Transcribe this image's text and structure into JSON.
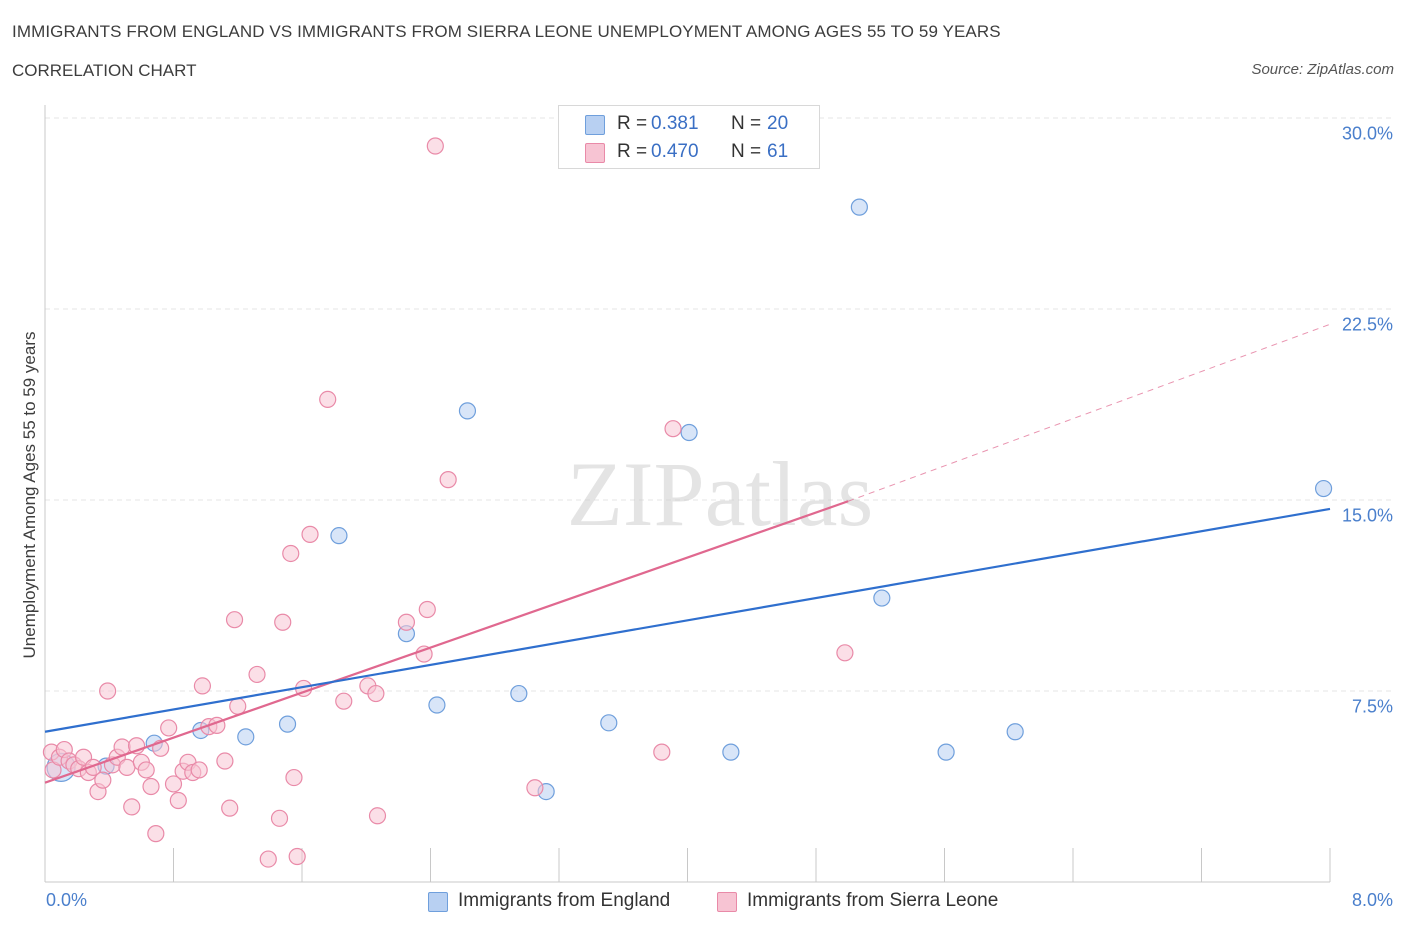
{
  "header": {
    "title": "IMMIGRANTS FROM ENGLAND VS IMMIGRANTS FROM SIERRA LEONE UNEMPLOYMENT AMONG AGES 55 TO 59 YEARS",
    "subtitle": "CORRELATION CHART",
    "source": "Source: ZipAtlas.com"
  },
  "watermark": "ZIPatlas",
  "colors": {
    "england_fill": "#b8d0f2",
    "england_stroke": "#6f9fdc",
    "england_line": "#2f6fce",
    "sierra_fill": "#f7c4d3",
    "sierra_stroke": "#e98aa8",
    "sierra_line": "#e0688f",
    "grid": "#e4e4e4",
    "axis_text": "#4a7fcc"
  },
  "legend": {
    "england": {
      "r_label": "R =",
      "r_value": "0.381",
      "n_label": "N =",
      "n_value": "20"
    },
    "sierra": {
      "r_label": "R =",
      "r_value": "0.470",
      "n_label": "N =",
      "n_value": "61"
    }
  },
  "chart_data": {
    "type": "scatter",
    "title": "IMMIGRANTS FROM ENGLAND VS IMMIGRANTS FROM SIERRA LEONE UNEMPLOYMENT AMONG AGES 55 TO 59 YEARS",
    "xlabel": "",
    "ylabel": "Unemployment Among Ages 55 to 59 years",
    "xlim": [
      0,
      8
    ],
    "ylim": [
      0,
      30
    ],
    "x_tick_labels": [
      "0.0%",
      "8.0%"
    ],
    "y_ticks": [
      7.5,
      15,
      22.5,
      30
    ],
    "y_tick_labels": [
      "7.5%",
      "15.0%",
      "22.5%",
      "30.0%"
    ],
    "grid": true,
    "series": [
      {
        "name": "Immigrants from England",
        "r": 0.381,
        "n": 20,
        "trend": {
          "x0": 0.0,
          "y0": 5.9,
          "x1": 8.0,
          "y1": 14.65
        },
        "points": [
          {
            "x": 0.1,
            "y": 4.5,
            "big": true
          },
          {
            "x": 0.38,
            "y": 4.55
          },
          {
            "x": 0.68,
            "y": 5.45
          },
          {
            "x": 0.97,
            "y": 5.95
          },
          {
            "x": 1.25,
            "y": 5.7
          },
          {
            "x": 1.51,
            "y": 6.2
          },
          {
            "x": 1.83,
            "y": 13.6
          },
          {
            "x": 2.25,
            "y": 9.75
          },
          {
            "x": 2.44,
            "y": 6.95
          },
          {
            "x": 2.63,
            "y": 18.5
          },
          {
            "x": 2.95,
            "y": 7.4
          },
          {
            "x": 3.12,
            "y": 3.55
          },
          {
            "x": 3.51,
            "y": 6.25
          },
          {
            "x": 4.01,
            "y": 17.65
          },
          {
            "x": 4.27,
            "y": 5.1
          },
          {
            "x": 5.07,
            "y": 26.5
          },
          {
            "x": 5.21,
            "y": 11.15
          },
          {
            "x": 5.61,
            "y": 5.1
          },
          {
            "x": 6.04,
            "y": 5.9
          },
          {
            "x": 7.96,
            "y": 15.45
          }
        ]
      },
      {
        "name": "Immigrants from Sierra Leone",
        "r": 0.47,
        "n": 61,
        "trend": {
          "x0": 0.0,
          "y0": 3.9,
          "x1": 5.0,
          "y1": 14.95
        },
        "trend_extension": {
          "x0": 5.0,
          "y0": 14.95,
          "x1": 8.0,
          "y1": 21.9
        },
        "points": [
          {
            "x": 0.04,
            "y": 5.1
          },
          {
            "x": 0.05,
            "y": 4.4
          },
          {
            "x": 0.09,
            "y": 4.9
          },
          {
            "x": 0.12,
            "y": 5.2
          },
          {
            "x": 0.15,
            "y": 4.75
          },
          {
            "x": 0.18,
            "y": 4.6
          },
          {
            "x": 0.21,
            "y": 4.45
          },
          {
            "x": 0.24,
            "y": 4.9
          },
          {
            "x": 0.27,
            "y": 4.3
          },
          {
            "x": 0.3,
            "y": 4.5
          },
          {
            "x": 0.33,
            "y": 3.55
          },
          {
            "x": 0.36,
            "y": 4.0
          },
          {
            "x": 0.39,
            "y": 7.5
          },
          {
            "x": 0.42,
            "y": 4.6
          },
          {
            "x": 0.45,
            "y": 4.9
          },
          {
            "x": 0.48,
            "y": 5.3
          },
          {
            "x": 0.51,
            "y": 4.5
          },
          {
            "x": 0.54,
            "y": 2.95
          },
          {
            "x": 0.57,
            "y": 5.35
          },
          {
            "x": 0.6,
            "y": 4.7
          },
          {
            "x": 0.63,
            "y": 4.4
          },
          {
            "x": 0.66,
            "y": 3.75
          },
          {
            "x": 0.69,
            "y": 1.9
          },
          {
            "x": 0.72,
            "y": 5.25
          },
          {
            "x": 0.77,
            "y": 6.05
          },
          {
            "x": 0.8,
            "y": 3.85
          },
          {
            "x": 0.83,
            "y": 3.2
          },
          {
            "x": 0.86,
            "y": 4.35
          },
          {
            "x": 0.89,
            "y": 4.7
          },
          {
            "x": 0.92,
            "y": 4.3
          },
          {
            "x": 0.96,
            "y": 4.4
          },
          {
            "x": 0.98,
            "y": 7.7
          },
          {
            "x": 1.02,
            "y": 6.1
          },
          {
            "x": 1.07,
            "y": 6.15
          },
          {
            "x": 1.12,
            "y": 4.75
          },
          {
            "x": 1.15,
            "y": 2.9
          },
          {
            "x": 1.18,
            "y": 10.3
          },
          {
            "x": 1.2,
            "y": 6.9
          },
          {
            "x": 1.32,
            "y": 8.15
          },
          {
            "x": 1.39,
            "y": 0.9
          },
          {
            "x": 1.46,
            "y": 2.5
          },
          {
            "x": 1.48,
            "y": 10.2
          },
          {
            "x": 1.53,
            "y": 12.9
          },
          {
            "x": 1.55,
            "y": 4.1
          },
          {
            "x": 1.57,
            "y": 1.0
          },
          {
            "x": 1.61,
            "y": 7.6
          },
          {
            "x": 1.65,
            "y": 13.65
          },
          {
            "x": 1.76,
            "y": 18.95
          },
          {
            "x": 1.86,
            "y": 7.1
          },
          {
            "x": 2.01,
            "y": 7.7
          },
          {
            "x": 2.06,
            "y": 7.4
          },
          {
            "x": 2.07,
            "y": 2.6
          },
          {
            "x": 2.25,
            "y": 10.2
          },
          {
            "x": 2.36,
            "y": 8.95
          },
          {
            "x": 2.38,
            "y": 10.7
          },
          {
            "x": 2.43,
            "y": 28.9
          },
          {
            "x": 2.51,
            "y": 15.8
          },
          {
            "x": 3.05,
            "y": 3.7
          },
          {
            "x": 3.84,
            "y": 5.1
          },
          {
            "x": 3.91,
            "y": 17.8
          },
          {
            "x": 4.98,
            "y": 9.0
          }
        ]
      }
    ]
  }
}
